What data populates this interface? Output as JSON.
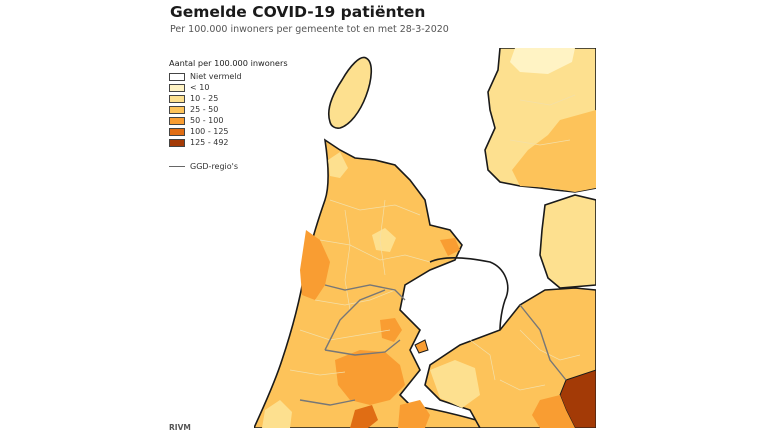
{
  "header": {
    "title": "Gemelde COVID-19 patiënten",
    "subtitle": "Per 100.000 inwoners per gemeente tot en met 28-3-2020"
  },
  "legend": {
    "title": "Aantal per 100.000 inwoners",
    "items": [
      {
        "label": "Niet vermeld",
        "color": "#ffffff"
      },
      {
        "label": "< 10",
        "color": "#fff3c4"
      },
      {
        "label": "10 - 25",
        "color": "#fde08f"
      },
      {
        "label": "25 - 50",
        "color": "#fdc35a"
      },
      {
        "label": "50 - 100",
        "color": "#f99d32"
      },
      {
        "label": "100 - 125",
        "color": "#e06d14"
      },
      {
        "label": "125 - 492",
        "color": "#a33a06"
      }
    ],
    "ggd_label": "GGD-regio's"
  },
  "source": "RIVM",
  "colors": {
    "water": "#ffffff",
    "border": "#1a1a1a",
    "ggd_line": "#777777",
    "municipality_line": "#f3dfa8"
  }
}
